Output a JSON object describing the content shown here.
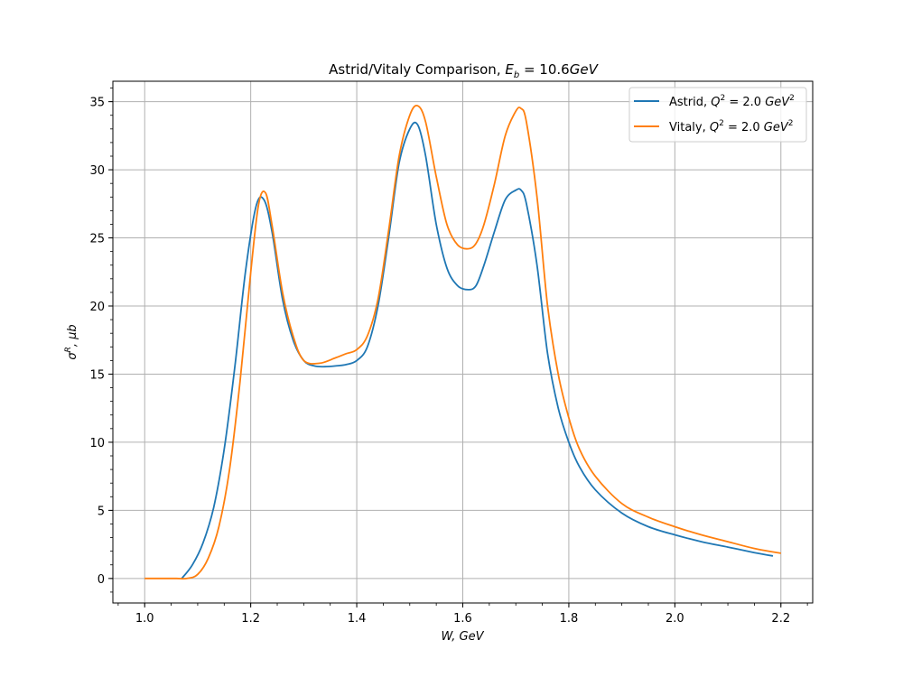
{
  "chart_data": {
    "type": "line",
    "title": "Astrid/Vitaly Comparison, E_b = 10.6GeV",
    "title_main": "Astrid/Vitaly Comparison, ",
    "title_symbol": "E",
    "title_sub": "b",
    "title_rest": " = 10.6",
    "title_unit": "GeV",
    "xlabel": "W, GeV",
    "ylabel": "σ^R, μb",
    "xlim": [
      0.94,
      2.26
    ],
    "ylim": [
      -1.8,
      36.5
    ],
    "xticks": [
      1.0,
      1.2,
      1.4,
      1.6,
      1.8,
      2.0,
      2.2
    ],
    "xtick_labels": [
      "1.0",
      "1.2",
      "1.4",
      "1.6",
      "1.8",
      "2.0",
      "2.2"
    ],
    "yticks": [
      0,
      5,
      10,
      15,
      20,
      25,
      30,
      35
    ],
    "ytick_labels": [
      "0",
      "5",
      "10",
      "15",
      "20",
      "25",
      "30",
      "35"
    ],
    "grid": true,
    "legend_position": "top-right",
    "series": [
      {
        "name": "Astrid, Q^2 = 2.0 GeV^2",
        "legend_prefix": "Astrid, ",
        "color": "#1f77b4",
        "x": [
          1.07,
          1.09,
          1.11,
          1.13,
          1.15,
          1.17,
          1.19,
          1.21,
          1.225,
          1.24,
          1.26,
          1.28,
          1.3,
          1.32,
          1.34,
          1.36,
          1.38,
          1.4,
          1.42,
          1.44,
          1.46,
          1.48,
          1.5,
          1.515,
          1.53,
          1.55,
          1.57,
          1.59,
          1.61,
          1.625,
          1.64,
          1.66,
          1.68,
          1.7,
          1.71,
          1.72,
          1.74,
          1.76,
          1.78,
          1.8,
          1.82,
          1.85,
          1.9,
          1.95,
          2.0,
          2.05,
          2.1,
          2.15,
          2.185
        ],
        "y": [
          0.0,
          1.0,
          2.6,
          5.2,
          9.5,
          15.5,
          22.5,
          27.3,
          27.8,
          25.5,
          20.5,
          17.5,
          16.0,
          15.6,
          15.55,
          15.6,
          15.7,
          16.0,
          17.0,
          20.0,
          25.0,
          30.5,
          33.0,
          33.3,
          31.0,
          26.0,
          22.8,
          21.5,
          21.2,
          21.5,
          23.0,
          25.5,
          27.8,
          28.5,
          28.5,
          27.5,
          23.0,
          16.5,
          12.5,
          10.0,
          8.2,
          6.5,
          4.8,
          3.8,
          3.2,
          2.7,
          2.3,
          1.9,
          1.65
        ]
      },
      {
        "name": "Vitaly, Q^2 = 2.0 GeV^2",
        "legend_prefix": "Vitaly, ",
        "color": "#ff7f0e",
        "x": [
          1.0,
          1.03,
          1.06,
          1.08,
          1.1,
          1.12,
          1.14,
          1.16,
          1.18,
          1.2,
          1.215,
          1.228,
          1.24,
          1.26,
          1.28,
          1.3,
          1.33,
          1.36,
          1.38,
          1.4,
          1.42,
          1.44,
          1.46,
          1.48,
          1.5,
          1.515,
          1.53,
          1.55,
          1.57,
          1.59,
          1.61,
          1.625,
          1.64,
          1.66,
          1.68,
          1.7,
          1.71,
          1.72,
          1.74,
          1.76,
          1.78,
          1.8,
          1.82,
          1.85,
          1.9,
          1.95,
          2.0,
          2.05,
          2.1,
          2.15,
          2.2
        ],
        "y": [
          0.0,
          0.0,
          0.0,
          0.0,
          0.3,
          1.5,
          3.8,
          8.0,
          14.5,
          22.5,
          27.5,
          28.3,
          26.0,
          21.0,
          17.8,
          16.0,
          15.8,
          16.2,
          16.5,
          16.8,
          17.8,
          20.5,
          25.5,
          31.0,
          34.0,
          34.7,
          33.5,
          29.5,
          26.0,
          24.5,
          24.2,
          24.6,
          26.0,
          29.0,
          32.5,
          34.3,
          34.5,
          33.5,
          28.0,
          20.0,
          15.0,
          11.8,
          9.5,
          7.5,
          5.5,
          4.5,
          3.8,
          3.2,
          2.7,
          2.2,
          1.85
        ]
      }
    ]
  }
}
